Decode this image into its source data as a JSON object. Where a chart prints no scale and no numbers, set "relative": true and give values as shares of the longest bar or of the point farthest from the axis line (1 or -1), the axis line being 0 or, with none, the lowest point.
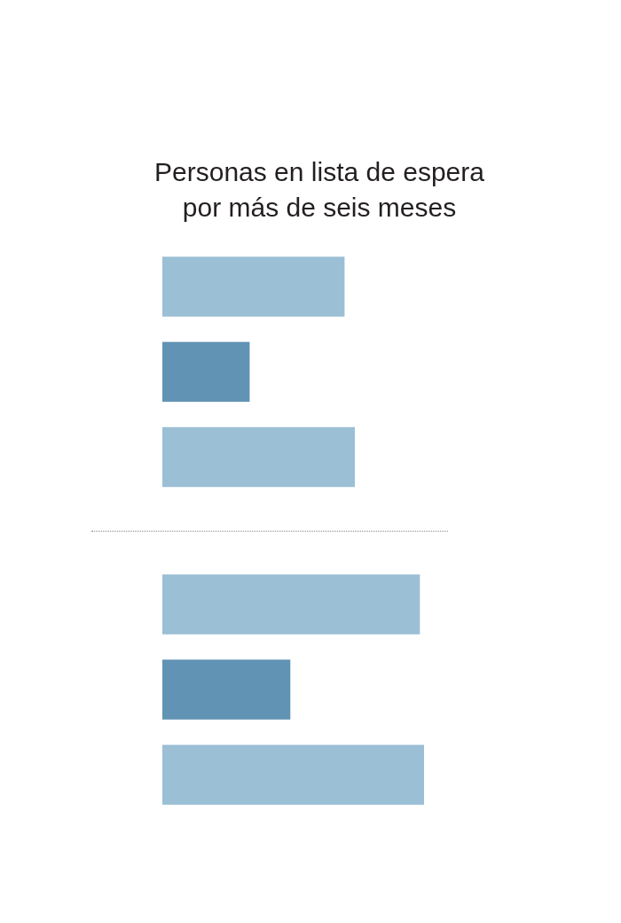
{
  "chart_data": [
    {
      "type": "bar",
      "title": "Personas en lista de espera por más de seis meses",
      "orientation": "horizontal",
      "relative": true,
      "categories": [
        null,
        null,
        null
      ],
      "values": [
        0.945,
        0.452,
        1
      ],
      "colors": [
        "#9bbfd5",
        "#6193b4",
        "#9bbfd5"
      ]
    },
    {
      "type": "bar",
      "orientation": "horizontal",
      "relative": true,
      "categories": [
        null,
        null,
        null
      ],
      "values": [
        0.983,
        0.488,
        1
      ],
      "colors": [
        "#9bbfd5",
        "#6193b4",
        "#9bbfd5"
      ]
    }
  ]
}
